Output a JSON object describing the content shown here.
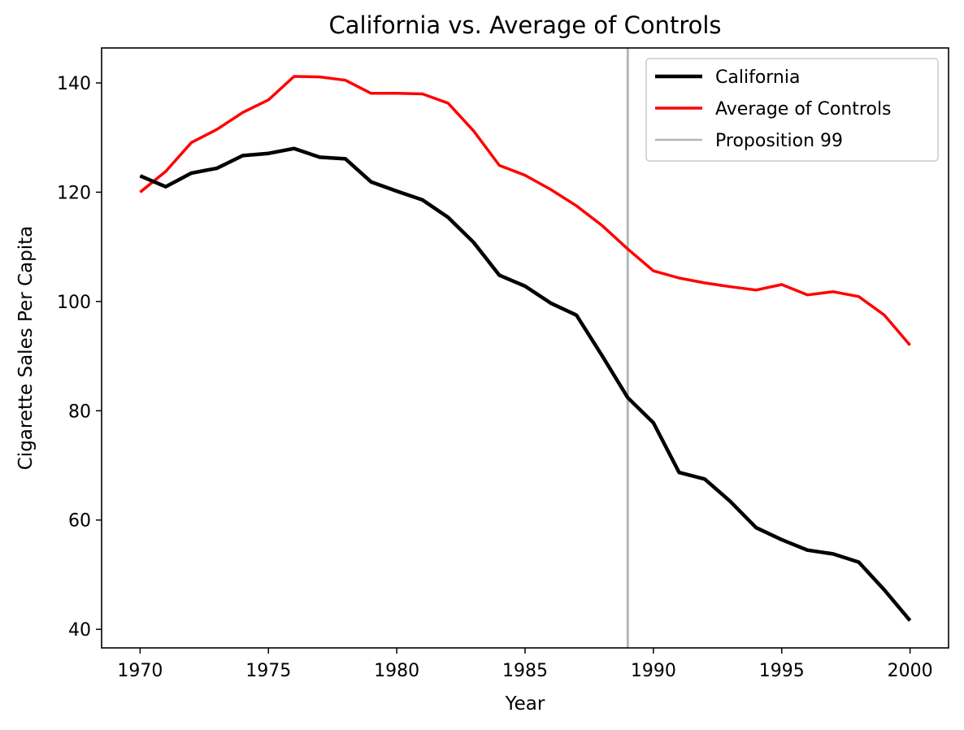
{
  "chart_data": {
    "type": "line",
    "title": "California vs. Average of Controls",
    "xlabel": "Year",
    "ylabel": "Cigarette Sales Per Capita",
    "xlim": [
      1968.5,
      2001.5
    ],
    "ylim": [
      36.6,
      146.4
    ],
    "xticks": [
      1970,
      1975,
      1980,
      1985,
      1990,
      1995,
      2000
    ],
    "yticks": [
      40,
      60,
      80,
      100,
      120,
      140
    ],
    "grid": false,
    "legend_position": "top-right",
    "x": [
      1970,
      1971,
      1972,
      1973,
      1974,
      1975,
      1976,
      1977,
      1978,
      1979,
      1980,
      1981,
      1982,
      1983,
      1984,
      1985,
      1986,
      1987,
      1988,
      1989,
      1990,
      1991,
      1992,
      1993,
      1994,
      1995,
      1996,
      1997,
      1998,
      1999,
      2000
    ],
    "series": [
      {
        "name": "California",
        "color": "#000000",
        "values": [
          123.0,
          121.0,
          123.5,
          124.4,
          126.7,
          127.1,
          128.0,
          126.4,
          126.1,
          121.9,
          120.2,
          118.6,
          115.4,
          110.8,
          104.8,
          102.8,
          99.7,
          97.5,
          90.1,
          82.4,
          77.8,
          68.7,
          67.5,
          63.4,
          58.6,
          56.4,
          54.5,
          53.8,
          52.3,
          47.2,
          41.6
        ]
      },
      {
        "name": "Average of Controls",
        "color": "#ff0000",
        "values": [
          120.0,
          123.8,
          129.1,
          131.5,
          134.6,
          136.9,
          141.2,
          141.1,
          140.5,
          138.1,
          138.1,
          138.0,
          136.3,
          131.2,
          124.9,
          123.1,
          120.5,
          117.5,
          113.9,
          109.6,
          105.6,
          104.3,
          103.4,
          102.7,
          102.1,
          103.1,
          101.2,
          101.8,
          100.9,
          97.5,
          92.0
        ]
      }
    ],
    "vlines": [
      {
        "name": "Proposition 99",
        "x": 1989,
        "color": "#b0b8b8"
      }
    ]
  }
}
